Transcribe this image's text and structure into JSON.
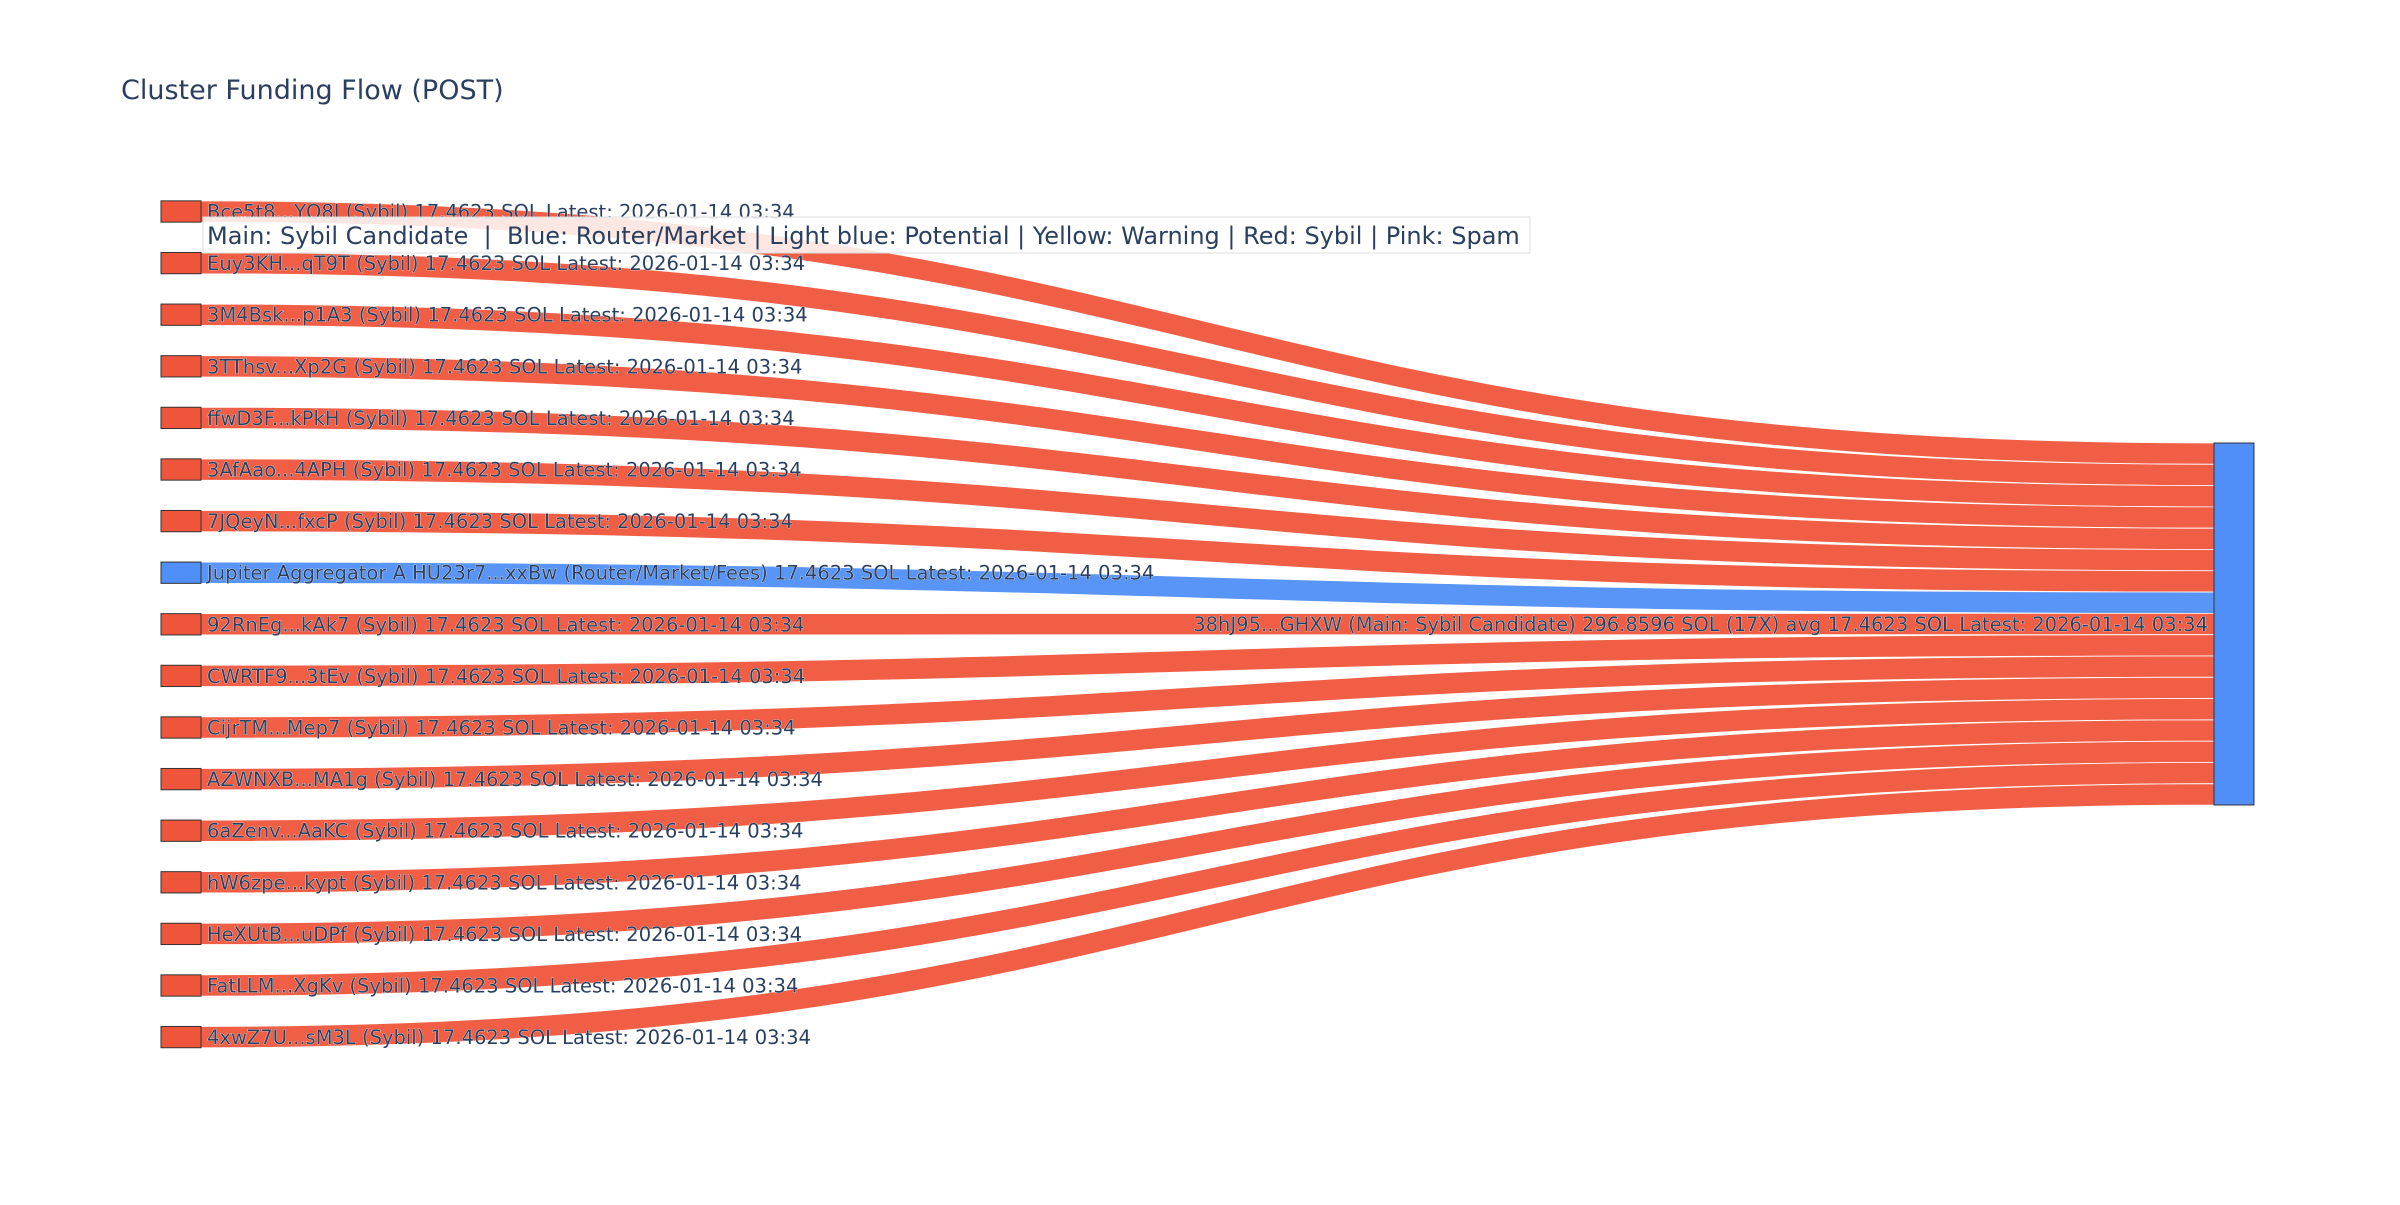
{
  "chart_data": {
    "type": "sankey",
    "title": "Cluster Funding Flow (POST)",
    "annotation": "Main: Sybil Candidate  |  Blue: Router/Market | Light blue: Potential | Yellow: Warning | Red: Sybil | Pink: Spam",
    "colors": {
      "sybil": "#ef553b",
      "router": "#4f8ff7",
      "node_outline": "#333333",
      "title": "#2a3f5f"
    },
    "sources": [
      {
        "label": "Bce5t8...YQ8J (Sybil) 17.4623 SOL Latest: 2026-01-14 03:34",
        "category": "sybil",
        "value": 17.4623
      },
      {
        "label": "Euy3KH...qT9T (Sybil) 17.4623 SOL Latest: 2026-01-14 03:34",
        "category": "sybil",
        "value": 17.4623
      },
      {
        "label": "3M4Bsk...p1A3 (Sybil) 17.4623 SOL Latest: 2026-01-14 03:34",
        "category": "sybil",
        "value": 17.4623
      },
      {
        "label": "3TThsv...Xp2G (Sybil) 17.4623 SOL Latest: 2026-01-14 03:34",
        "category": "sybil",
        "value": 17.4623
      },
      {
        "label": "ffwD3F...kPkH (Sybil) 17.4623 SOL Latest: 2026-01-14 03:34",
        "category": "sybil",
        "value": 17.4623
      },
      {
        "label": "3AfAao...4APH (Sybil) 17.4623 SOL Latest: 2026-01-14 03:34",
        "category": "sybil",
        "value": 17.4623
      },
      {
        "label": "7JQeyN...fxcP (Sybil) 17.4623 SOL Latest: 2026-01-14 03:34",
        "category": "sybil",
        "value": 17.4623
      },
      {
        "label": "Jupiter Aggregator A HU23r7...xxBw (Router/Market/Fees) 17.4623 SOL Latest: 2026-01-14 03:34",
        "category": "router",
        "value": 17.4623
      },
      {
        "label": "92RnEg...kAk7 (Sybil) 17.4623 SOL Latest: 2026-01-14 03:34",
        "category": "sybil",
        "value": 17.4623
      },
      {
        "label": "CWRTF9...3tEv (Sybil) 17.4623 SOL Latest: 2026-01-14 03:34",
        "category": "sybil",
        "value": 17.4623
      },
      {
        "label": "CijrTM...Mep7 (Sybil) 17.4623 SOL Latest: 2026-01-14 03:34",
        "category": "sybil",
        "value": 17.4623
      },
      {
        "label": "AZWNXB...MA1g (Sybil) 17.4623 SOL Latest: 2026-01-14 03:34",
        "category": "sybil",
        "value": 17.4623
      },
      {
        "label": "6aZenv...AaKC (Sybil) 17.4623 SOL Latest: 2026-01-14 03:34",
        "category": "sybil",
        "value": 17.4623
      },
      {
        "label": "hW6zpe...kypt (Sybil) 17.4623 SOL Latest: 2026-01-14 03:34",
        "category": "sybil",
        "value": 17.4623
      },
      {
        "label": "HeXUtB...uDPf (Sybil) 17.4623 SOL Latest: 2026-01-14 03:34",
        "category": "sybil",
        "value": 17.4623
      },
      {
        "label": "FatLLM...XgKv (Sybil) 17.4623 SOL Latest: 2026-01-14 03:34",
        "category": "sybil",
        "value": 17.4623
      },
      {
        "label": "4xwZ7U...sM3L (Sybil) 17.4623 SOL Latest: 2026-01-14 03:34",
        "category": "sybil",
        "value": 17.4623
      }
    ],
    "target": {
      "label": "38hJ95...GHXW (Main: Sybil Candidate) 296.8596 SOL (17X) avg 17.4623 SOL Latest: 2026-01-14 03:34",
      "category": "router",
      "value": 296.8596
    }
  }
}
